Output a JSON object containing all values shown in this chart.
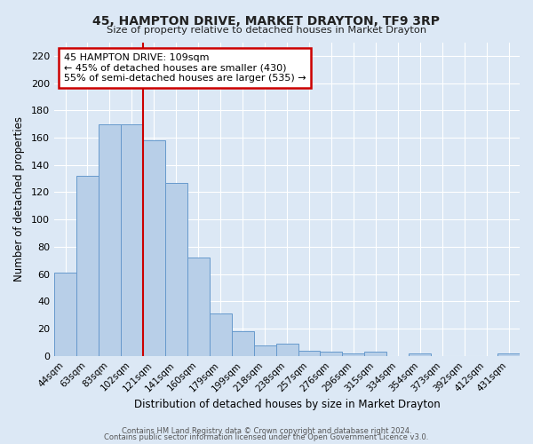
{
  "title": "45, HAMPTON DRIVE, MARKET DRAYTON, TF9 3RP",
  "subtitle": "Size of property relative to detached houses in Market Drayton",
  "xlabel": "Distribution of detached houses by size in Market Drayton",
  "ylabel": "Number of detached properties",
  "footnote1": "Contains HM Land Registry data © Crown copyright and database right 2024.",
  "footnote2": "Contains public sector information licensed under the Open Government Licence v3.0.",
  "bar_labels": [
    "44sqm",
    "63sqm",
    "83sqm",
    "102sqm",
    "121sqm",
    "141sqm",
    "160sqm",
    "179sqm",
    "199sqm",
    "218sqm",
    "238sqm",
    "257sqm",
    "276sqm",
    "296sqm",
    "315sqm",
    "334sqm",
    "354sqm",
    "373sqm",
    "392sqm",
    "412sqm",
    "431sqm"
  ],
  "bar_values": [
    61,
    132,
    170,
    170,
    158,
    127,
    72,
    31,
    18,
    8,
    9,
    4,
    3,
    2,
    3,
    0,
    2,
    0,
    0,
    0,
    2
  ],
  "bar_color": "#b8cfe8",
  "bar_edge_color": "#6699cc",
  "ylim": [
    0,
    230
  ],
  "yticks": [
    0,
    20,
    40,
    60,
    80,
    100,
    120,
    140,
    160,
    180,
    200,
    220
  ],
  "vline_x_index": 3.5,
  "vline_color": "#cc0000",
  "annotation_title": "45 HAMPTON DRIVE: 109sqm",
  "annotation_line1": "← 45% of detached houses are smaller (430)",
  "annotation_line2": "55% of semi-detached houses are larger (535) →",
  "annotation_box_color": "#cc0000",
  "background_color": "#dce8f5",
  "grid_color": "#ffffff"
}
